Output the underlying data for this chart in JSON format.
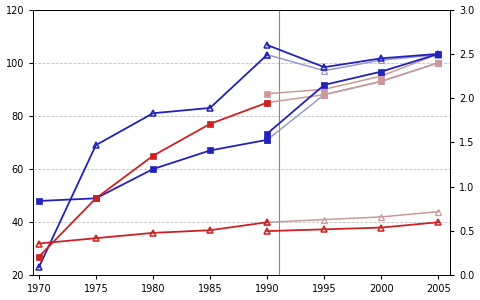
{
  "years_de": [
    1970,
    1975,
    1980,
    1985,
    1990
  ],
  "years_all": [
    1990,
    1995,
    2000,
    2005
  ],
  "years_full": [
    1970,
    1975,
    1980,
    1985,
    1990,
    1995,
    2000,
    2005
  ],
  "de_blue_tri": [
    23,
    69,
    81,
    83,
    103
  ],
  "de_blue_sq": [
    48,
    49,
    60,
    67,
    71
  ],
  "de_red_sq": [
    27,
    49,
    65,
    77,
    85
  ],
  "de_red_tri": [
    32,
    34,
    36,
    37,
    40
  ],
  "new_blue_tri": [
    103,
    97,
    101,
    103
  ],
  "new_blue_sq": [
    71,
    88,
    93,
    100
  ],
  "new_red_sq": [
    85,
    88,
    93,
    100
  ],
  "new_red_tri": [
    40,
    41,
    42,
    44
  ],
  "ch_blue_tri_r": [
    2.6,
    2.35,
    2.45,
    2.5
  ],
  "ch_blue_sq_r": [
    1.6,
    2.15,
    2.3,
    2.5
  ],
  "ch_red_sq_r": [
    2.05,
    2.1,
    2.25,
    2.5
  ],
  "ch_red_tri_r": [
    0.5,
    0.52,
    0.54,
    0.6
  ],
  "blue_solid": "#2222bb",
  "blue_faded": "#9999cc",
  "red_solid": "#cc2222",
  "red_faded": "#cc9999",
  "xlim": [
    1969.5,
    2006
  ],
  "ylim_left": [
    20,
    120
  ],
  "ylim_right": [
    0,
    3
  ],
  "yticks_left": [
    20,
    40,
    60,
    80,
    100,
    120
  ],
  "yticks_right": [
    0,
    0.5,
    1.0,
    1.5,
    2.0,
    2.5,
    3.0
  ],
  "xticks": [
    1970,
    1975,
    1980,
    1985,
    1990,
    1995,
    2000,
    2005
  ],
  "vline_x": 1991,
  "background": "#ffffff",
  "grid_color": "#999999"
}
